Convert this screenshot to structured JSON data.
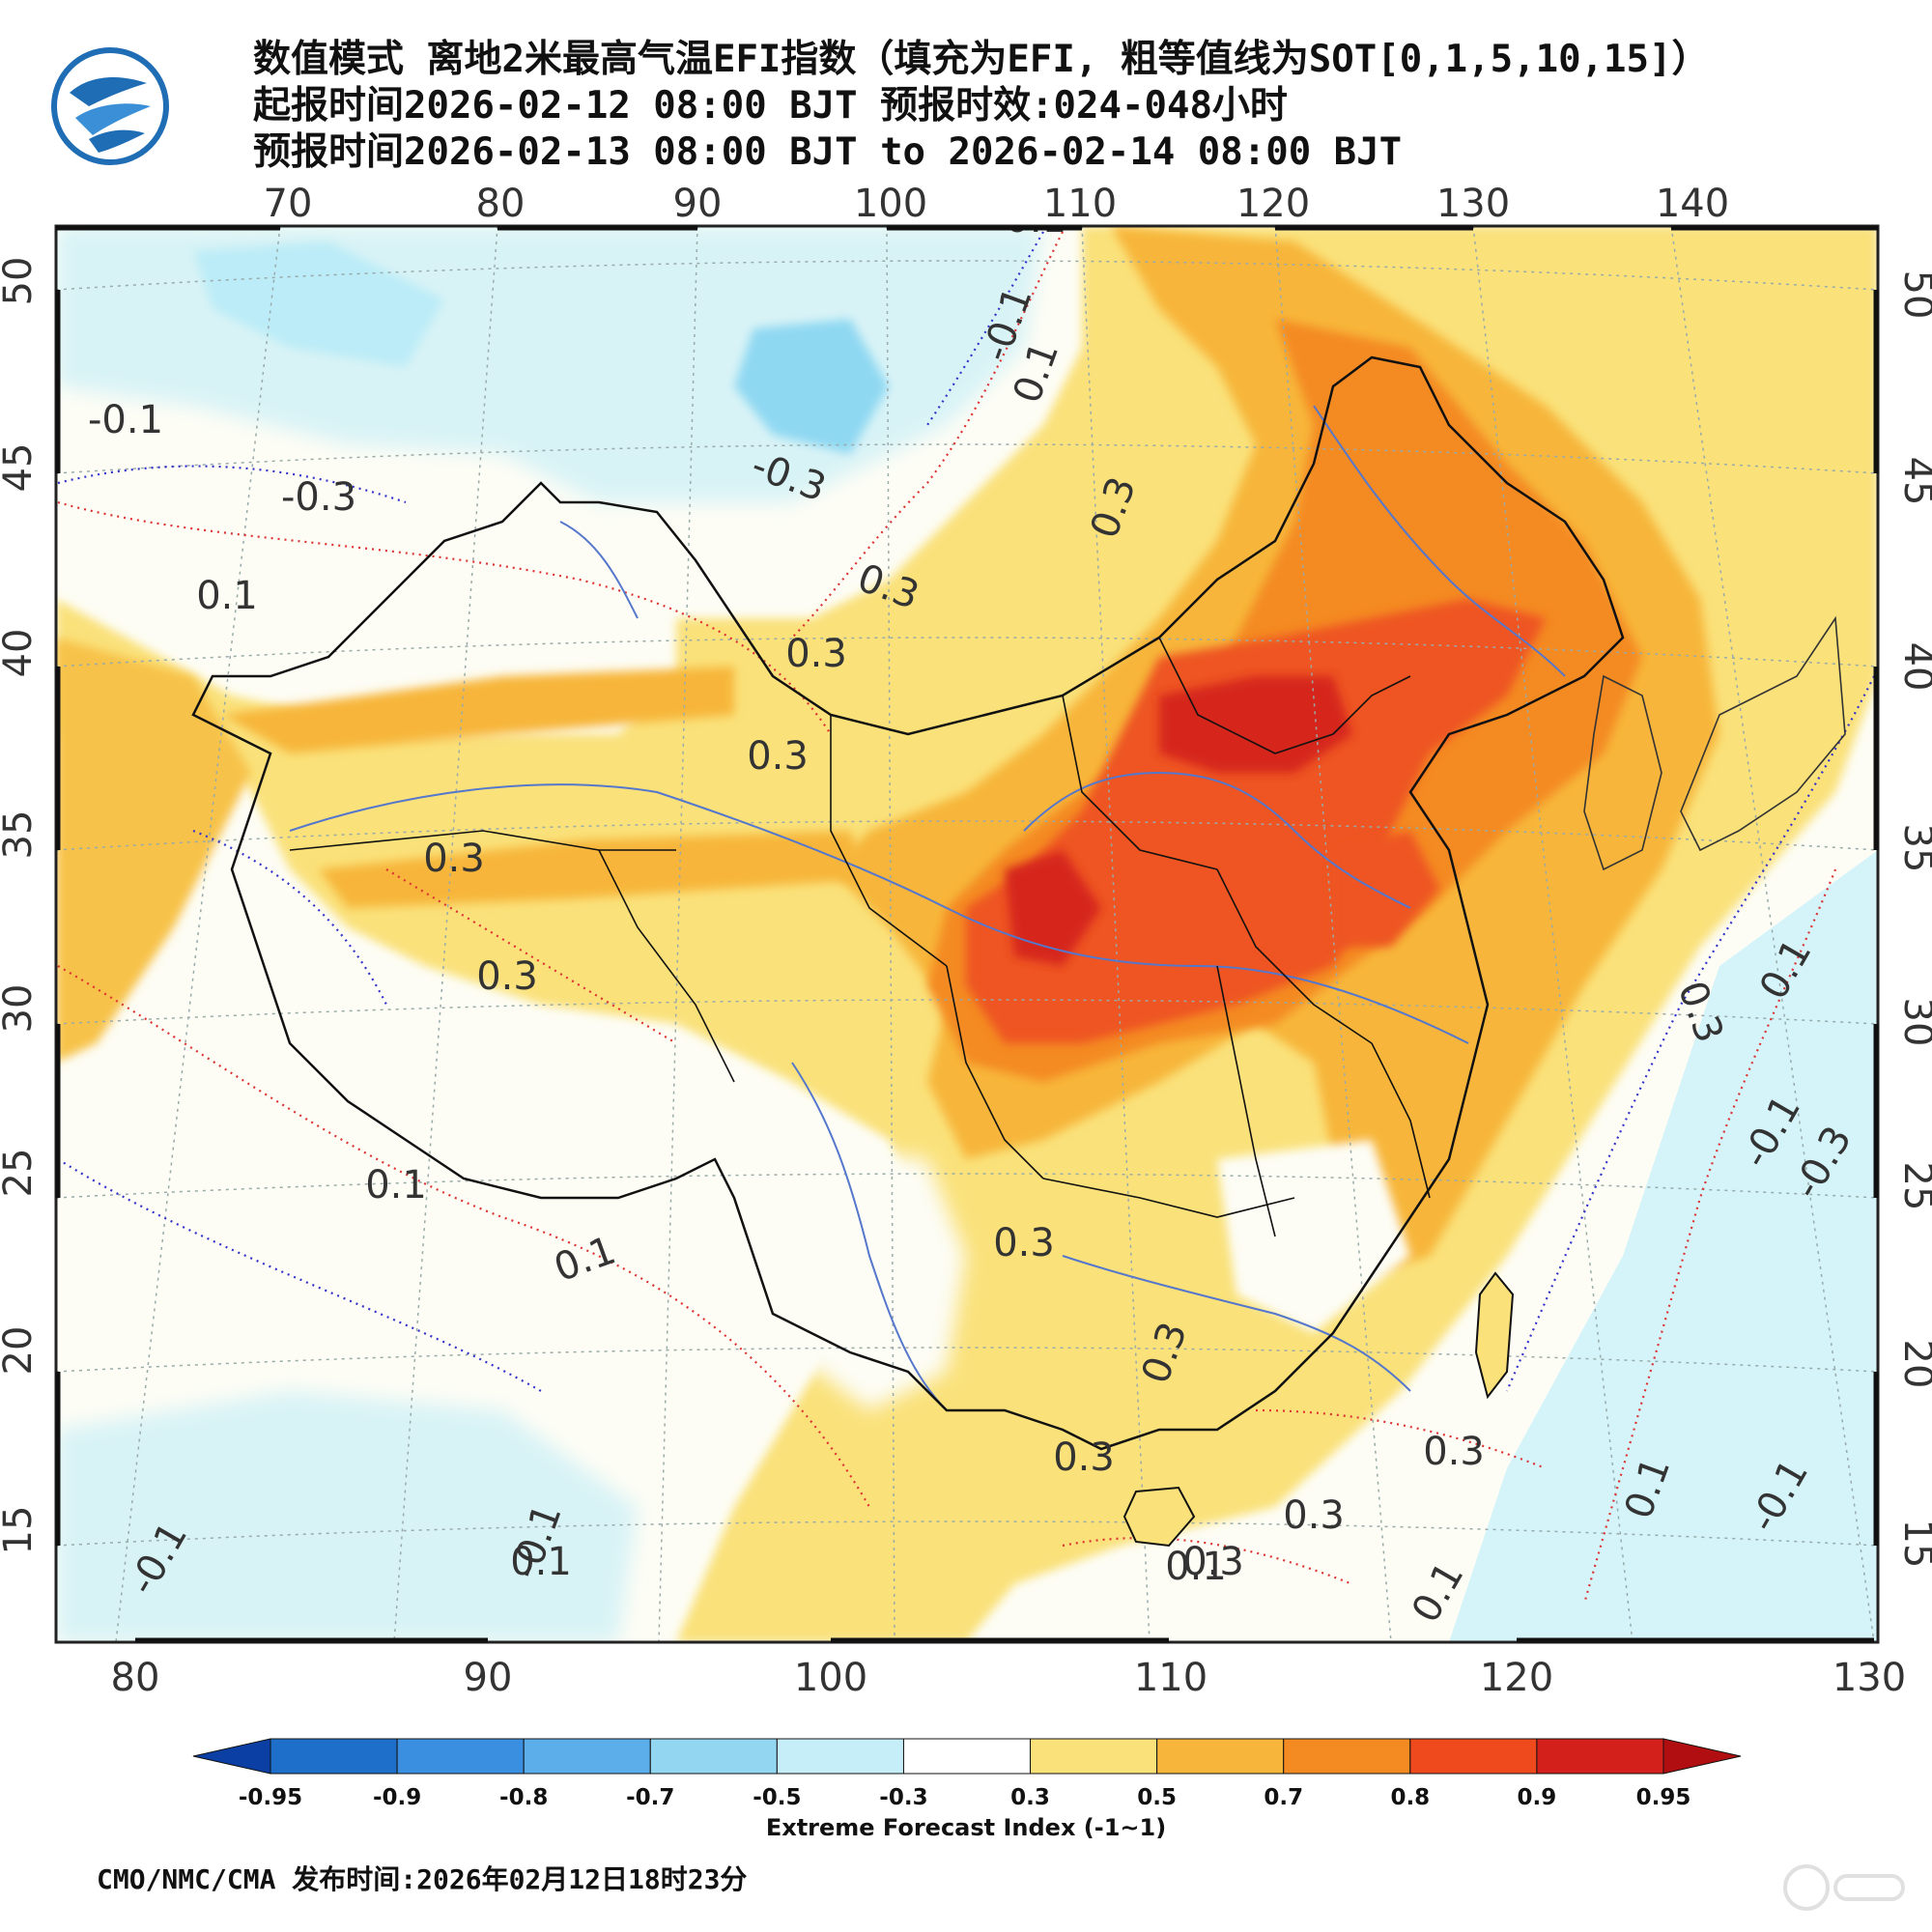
{
  "header": {
    "title_line1": "数值模式 离地2米最高气温EFI指数（填充为EFI, 粗等值线为SOT[0,1,5,10,15]）",
    "title_line2": "起报时间2026-02-12 08:00 BJT 预报时效:024-048小时",
    "title_line3": "预报时间2026-02-13 08:00 BJT to 2026-02-14 08:00 BJT",
    "logo_icon": "cma-logo"
  },
  "map": {
    "top_lon_labels": [
      "70",
      "80",
      "90",
      "100",
      "110",
      "120",
      "130",
      "140"
    ],
    "bottom_lon_labels": [
      "80",
      "90",
      "100",
      "110",
      "120",
      "130"
    ],
    "left_lat_labels": [
      "50",
      "45",
      "40",
      "35",
      "30",
      "25",
      "20",
      "15"
    ],
    "right_lat_labels": [
      "50",
      "45",
      "40",
      "35",
      "30",
      "25",
      "20",
      "15"
    ],
    "contour_labels": [
      {
        "text": "-0.1",
        "color": "blue"
      },
      {
        "text": "-0.3",
        "color": "blue"
      },
      {
        "text": "-0.3",
        "color": "blue"
      },
      {
        "text": "-0.1",
        "color": "blue"
      },
      {
        "text": "0.1",
        "color": "red"
      },
      {
        "text": "0.3",
        "color": "red"
      },
      {
        "text": "0.3",
        "color": "red"
      },
      {
        "text": "0.3",
        "color": "red"
      },
      {
        "text": "0.1",
        "color": "red"
      },
      {
        "text": "0.3",
        "color": "red"
      },
      {
        "text": "0.3",
        "color": "red"
      },
      {
        "text": "0.3",
        "color": "red"
      },
      {
        "text": "0.1",
        "color": "red"
      },
      {
        "text": "0.1",
        "color": "red"
      },
      {
        "text": "0.3",
        "color": "red"
      },
      {
        "text": "0.3",
        "color": "red"
      },
      {
        "text": "0.3",
        "color": "red"
      },
      {
        "text": "0.3",
        "color": "red"
      },
      {
        "text": "0.3",
        "color": "red"
      },
      {
        "text": "0.3",
        "color": "red"
      },
      {
        "text": "0.1",
        "color": "red"
      },
      {
        "text": "0.1",
        "color": "red"
      },
      {
        "text": "0.1",
        "color": "red"
      },
      {
        "text": "0.3",
        "color": "red"
      },
      {
        "text": "0.1",
        "color": "red"
      },
      {
        "text": "-0.1",
        "color": "blue"
      },
      {
        "text": "-0.3",
        "color": "blue"
      },
      {
        "text": "-0.1",
        "color": "blue"
      },
      {
        "text": "-0.1",
        "color": "blue"
      },
      {
        "text": "-0.1",
        "color": "blue"
      },
      {
        "text": "-0.1",
        "color": "blue"
      },
      {
        "text": "0.1",
        "color": "red"
      },
      {
        "text": "0.1",
        "color": "red"
      }
    ],
    "colors": {
      "ocean_light": "#d4f4fa",
      "lightblue": "#bcecf7",
      "blue2": "#8fd8f2",
      "white": "#fdfdf5",
      "yellow": "#fae17a",
      "orange1": "#f7b63b",
      "orange2": "#f48a22",
      "red1": "#ee5520",
      "red2": "#d6261c",
      "border": "#111111",
      "river": "#5577cc"
    }
  },
  "colorbar": {
    "labels": [
      "-0.95",
      "-0.9",
      "-0.8",
      "-0.7",
      "-0.5",
      "-0.3",
      "0.3",
      "0.5",
      "0.7",
      "0.8",
      "0.9",
      "0.95"
    ],
    "colors": [
      "#0b3fa3",
      "#1e6fc9",
      "#3b8fe0",
      "#5caeea",
      "#93d6f2",
      "#c6eef8",
      "#ffffff",
      "#fae17a",
      "#f7b63b",
      "#f48a22",
      "#ee4a1d",
      "#d4201a",
      "#b00e10"
    ],
    "title": "Extreme Forecast Index (-1~1)"
  },
  "footer": {
    "text": "CMO/NMC/CMA 发布时间:2026年02月12日18时23分"
  }
}
